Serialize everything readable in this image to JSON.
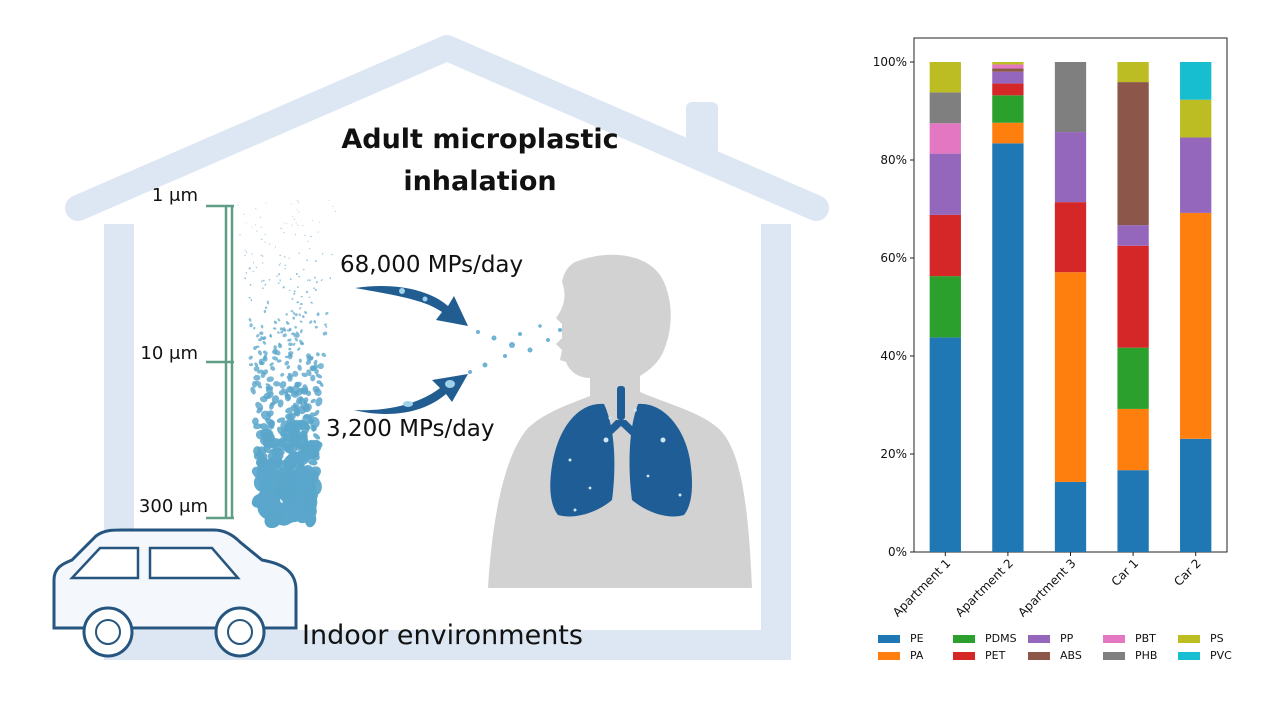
{
  "illustration": {
    "title_line1": "Adult microplastic",
    "title_line2": "inhalation",
    "scale_labels": [
      "1 μm",
      "10 μm",
      "300 μm"
    ],
    "rate_fine": "68,000 MPs/day",
    "rate_coarse": "3,200 MPs/day",
    "environment_label": "Indoor environments",
    "colors": {
      "house": "#dde7f3",
      "body": "#d2d2d2",
      "lungs": "#1f5d96",
      "particles": "#5aa6cb",
      "scale_bar": "#5f9e84",
      "car_outline": "#26567f",
      "arrow": "#225d92"
    }
  },
  "chart_data": {
    "type": "bar",
    "stacked": true,
    "title": "",
    "xlabel": "",
    "ylabel": "",
    "ylim": [
      0,
      100
    ],
    "yticks": [
      0,
      20,
      40,
      60,
      80,
      100
    ],
    "ytick_labels": [
      "0%",
      "20%",
      "40%",
      "60%",
      "80%",
      "100%"
    ],
    "categories": [
      "Apartment 1",
      "Apartment 2",
      "Apartment 3",
      "Car 1",
      "Car 2"
    ],
    "series": [
      {
        "name": "PE",
        "color": "#1f77b4",
        "values": [
          43.8,
          83.4,
          14.3,
          16.7,
          23.1
        ]
      },
      {
        "name": "PA",
        "color": "#ff7f0e",
        "values": [
          0,
          4.2,
          42.8,
          12.5,
          46.1
        ]
      },
      {
        "name": "PDMS",
        "color": "#2ca02c",
        "values": [
          12.5,
          5.6,
          0,
          12.5,
          0
        ]
      },
      {
        "name": "PET",
        "color": "#d62728",
        "values": [
          12.5,
          2.4,
          14.3,
          20.8,
          0
        ]
      },
      {
        "name": "PP",
        "color": "#9467bd",
        "values": [
          12.5,
          2.4,
          14.3,
          4.2,
          15.4
        ]
      },
      {
        "name": "ABS",
        "color": "#8c564b",
        "values": [
          0,
          0.7,
          0,
          29.2,
          0
        ]
      },
      {
        "name": "PBT",
        "color": "#e377c2",
        "values": [
          6.2,
          0.8,
          0,
          0,
          0
        ]
      },
      {
        "name": "PHB",
        "color": "#7f7f7f",
        "values": [
          6.3,
          0,
          14.3,
          0,
          0
        ]
      },
      {
        "name": "PS",
        "color": "#bcbd22",
        "values": [
          6.2,
          0.5,
          0,
          4.1,
          7.7
        ]
      },
      {
        "name": "PVC",
        "color": "#17becf",
        "values": [
          0,
          0,
          0,
          0,
          7.7
        ]
      }
    ],
    "legend_position": "bottom"
  }
}
